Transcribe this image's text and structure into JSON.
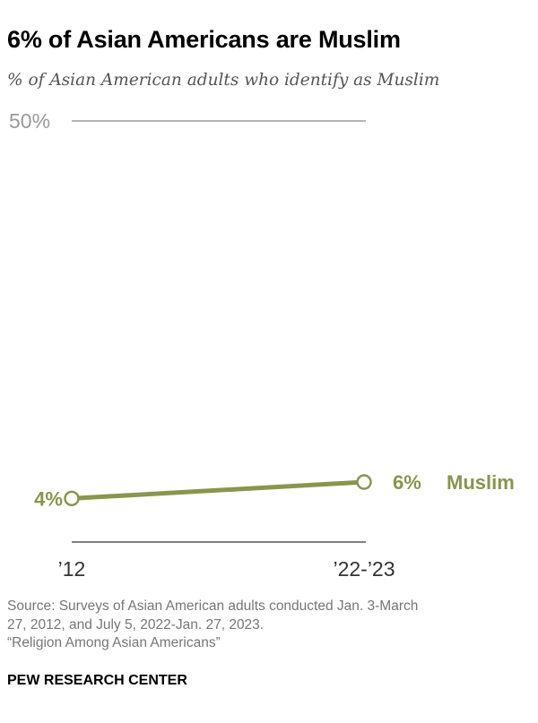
{
  "header": {
    "title": "6% of Asian Americans are Muslim",
    "subtitle": "% of Asian American adults who identify as Muslim"
  },
  "chart_data": {
    "type": "line",
    "title": "6% of Asian Americans are Muslim",
    "subtitle": "% of Asian American adults who identify as Muslim",
    "xlabel": "",
    "ylabel": "",
    "categories": [
      "’12",
      "’22-’23"
    ],
    "ylim": [
      0,
      50
    ],
    "y_tick_label": "50%",
    "series": [
      {
        "name": "Muslim",
        "values": [
          4,
          6
        ],
        "value_labels": [
          "4%",
          "6%"
        ],
        "color": "#8a954d"
      }
    ],
    "legend": "inline-right",
    "grid": false
  },
  "footer": {
    "source_lines": [
      "Source: Surveys of Asian American adults conducted Jan. 3-March",
      "27, 2012, and July 5, 2022-Jan. 27, 2023.",
      "“Religion Among Asian Americans”"
    ],
    "credit": "PEW RESEARCH CENTER"
  }
}
